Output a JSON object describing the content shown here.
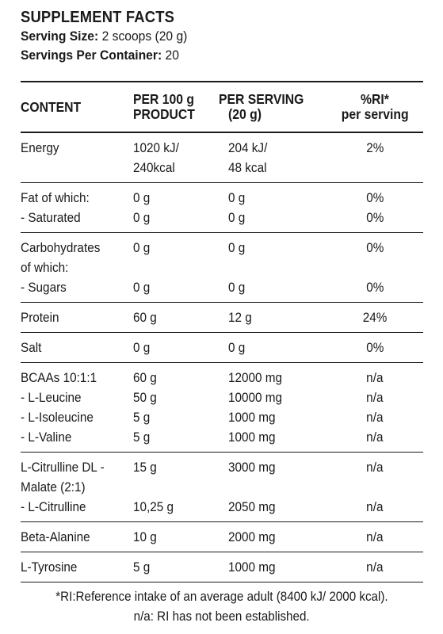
{
  "header": {
    "title": "SUPPLEMENT FACTS",
    "serving_size_label": "Serving Size:",
    "serving_size_value": "2 scoops (20 g)",
    "servings_label": "Servings Per Container:",
    "servings_value": "20"
  },
  "table": {
    "headers": {
      "content": "CONTENT",
      "per100_line1": "PER 100 g",
      "per100_line2": "PRODUCT",
      "perserv_line1": "PER SERVING",
      "perserv_line2": "(20 g)",
      "ri_line1": "%RI*",
      "ri_line2": "per serving"
    },
    "groups": [
      {
        "rows": [
          {
            "name": "Energy",
            "per100": "1020 kJ/",
            "serving": "204 kJ/",
            "ri": "2%"
          },
          {
            "name": "",
            "per100": "240kcal",
            "serving": "48 kcal",
            "ri": ""
          }
        ]
      },
      {
        "rows": [
          {
            "name": "Fat of which:",
            "per100": "0 g",
            "serving": "0 g",
            "ri": "0%"
          },
          {
            "name": "- Saturated",
            "per100": "0 g",
            "serving": "0 g",
            "ri": "0%"
          }
        ]
      },
      {
        "rows": [
          {
            "name": "Carbohydrates",
            "per100": "0 g",
            "serving": "0 g",
            "ri": "0%"
          },
          {
            "name": "of which:",
            "per100": "",
            "serving": "",
            "ri": ""
          },
          {
            "name": "- Sugars",
            "per100": "0 g",
            "serving": "0 g",
            "ri": "0%"
          }
        ]
      },
      {
        "rows": [
          {
            "name": "Protein",
            "per100": "60 g",
            "serving": "12 g",
            "ri": "24%"
          }
        ]
      },
      {
        "rows": [
          {
            "name": "Salt",
            "per100": "0 g",
            "serving": "0 g",
            "ri": "0%"
          }
        ]
      },
      {
        "rows": [
          {
            "name": "BCAAs 10:1:1",
            "per100": "60 g",
            "serving": "12000 mg",
            "ri": "n/a"
          },
          {
            "name": "- L-Leucine",
            "per100": "50 g",
            "serving": "10000 mg",
            "ri": "n/a"
          },
          {
            "name": "- L-Isoleucine",
            "per100": "5 g",
            "serving": "1000 mg",
            "ri": "n/a"
          },
          {
            "name": "- L-Valine",
            "per100": "5 g",
            "serving": "1000 mg",
            "ri": "n/a"
          }
        ]
      },
      {
        "rows": [
          {
            "name": "L-Citrulline DL -",
            "per100": "15 g",
            "serving": "3000 mg",
            "ri": "n/a"
          },
          {
            "name": "Malate (2:1)",
            "per100": "",
            "serving": "",
            "ri": ""
          },
          {
            "name": "- L-Citrulline",
            "per100": "10,25 g",
            "serving": "2050 mg",
            "ri": "n/a"
          }
        ]
      },
      {
        "rows": [
          {
            "name": "Beta-Alanine",
            "per100": "10 g",
            "serving": "2000 mg",
            "ri": "n/a"
          }
        ]
      },
      {
        "rows": [
          {
            "name": "L-Tyrosine",
            "per100": "5 g",
            "serving": "1000 mg",
            "ri": "n/a"
          }
        ]
      }
    ]
  },
  "footer": {
    "line1": "*RI:Reference intake of an average adult (8400 kJ/ 2000 kcal).",
    "line2": "n/a: RI has not been established."
  }
}
